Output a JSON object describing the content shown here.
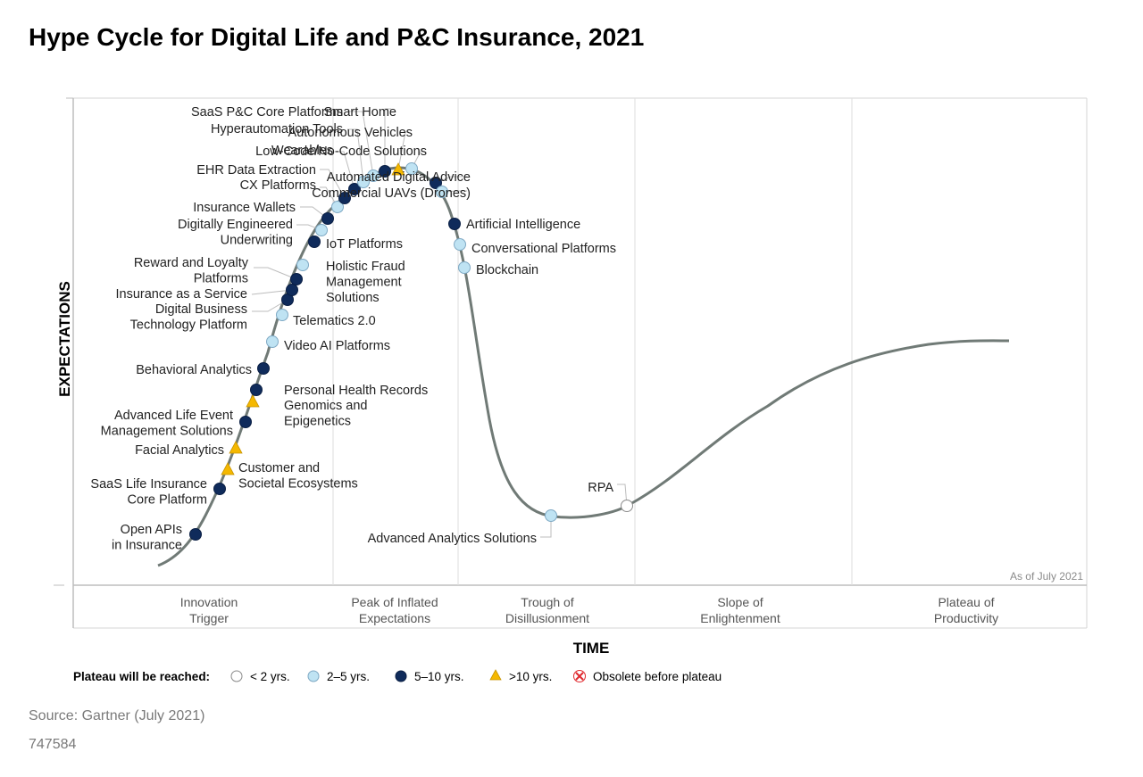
{
  "title": "Hype Cycle for Digital Life and P&C Insurance, 2021",
  "y_axis_label": "EXPECTATIONS",
  "x_axis_label": "TIME",
  "as_of": "As of July 2021",
  "phases": [
    [
      "Innovation",
      "Trigger"
    ],
    [
      "Peak of Inflated",
      "Expectations"
    ],
    [
      "Trough of",
      "Disillusionment"
    ],
    [
      "Slope of",
      "Enlightenment"
    ],
    [
      "Plateau of",
      "Productivity"
    ]
  ],
  "legend": {
    "title": "Plateau will be reached:",
    "items": [
      {
        "key": "lt2",
        "label": "< 2 yrs."
      },
      {
        "key": "2to5",
        "label": "2–5 yrs."
      },
      {
        "key": "5to10",
        "label": "5–10 yrs."
      },
      {
        "key": "gt10",
        "label": ">10 yrs."
      },
      {
        "key": "obsolete",
        "label": "Obsolete before plateau"
      }
    ]
  },
  "colors": {
    "lt2": "#ffffff",
    "2to5": "#bfe3f3",
    "5to10": "#0f2b5b",
    "gt10": "#f5b800",
    "obsolete": "#e0292e",
    "curve": "#707a76"
  },
  "source": "Source: Gartner (July 2021)",
  "doc_id": "747584",
  "technologies": [
    {
      "name": [
        "Open APIs",
        "in Insurance"
      ],
      "category": "5to10"
    },
    {
      "name": [
        "SaaS Life Insurance",
        "Core Platform"
      ],
      "category": "5to10"
    },
    {
      "name": [
        "Customer and",
        "Societal Ecosystems"
      ],
      "category": "gt10"
    },
    {
      "name": [
        "Facial Analytics"
      ],
      "category": "gt10"
    },
    {
      "name": [
        "Advanced Life Event",
        "Management Solutions"
      ],
      "category": "5to10"
    },
    {
      "name": [
        "Genomics and",
        "Epigenetics"
      ],
      "category": "gt10"
    },
    {
      "name": [
        "Personal Health Records"
      ],
      "category": "5to10"
    },
    {
      "name": [
        "Behavioral Analytics"
      ],
      "category": "5to10"
    },
    {
      "name": [
        "Video AI Platforms"
      ],
      "category": "2to5"
    },
    {
      "name": [
        "Telematics 2.0"
      ],
      "category": "2to5"
    },
    {
      "name": [
        "Digital Business",
        "Technology Platform"
      ],
      "category": "5to10"
    },
    {
      "name": [
        "Insurance as a Service"
      ],
      "category": "5to10"
    },
    {
      "name": [
        "Reward and Loyalty",
        "Platforms"
      ],
      "category": "5to10"
    },
    {
      "name": [
        "Holistic Fraud",
        "Management",
        "Solutions"
      ],
      "category": "2to5"
    },
    {
      "name": [
        "IoT Platforms"
      ],
      "category": "5to10"
    },
    {
      "name": [
        "Digitally Engineered",
        "Underwriting"
      ],
      "category": "2to5"
    },
    {
      "name": [
        "Insurance Wallets"
      ],
      "category": "5to10"
    },
    {
      "name": [
        "CX Platforms"
      ],
      "category": "2to5"
    },
    {
      "name": [
        "EHR Data Extraction"
      ],
      "category": "5to10"
    },
    {
      "name": [
        "Wearables"
      ],
      "category": "5to10"
    },
    {
      "name": [
        "Hyperautomation Tools"
      ],
      "category": "2to5"
    },
    {
      "name": [
        "SaaS P&C Core Platforms"
      ],
      "category": "2to5"
    },
    {
      "name": [
        "Smart Home"
      ],
      "category": "5to10"
    },
    {
      "name": [
        "Autonomous Vehicles"
      ],
      "category": "gt10"
    },
    {
      "name": [
        "Low-Code/No-Code Solutions"
      ],
      "category": "2to5"
    },
    {
      "name": [
        "Automated Digital Advice"
      ],
      "category": "5to10"
    },
    {
      "name": [
        "Commercial UAVs (Drones)"
      ],
      "category": "2to5"
    },
    {
      "name": [
        "Artificial Intelligence"
      ],
      "category": "5to10"
    },
    {
      "name": [
        "Conversational Platforms"
      ],
      "category": "2to5"
    },
    {
      "name": [
        "Blockchain"
      ],
      "category": "2to5"
    },
    {
      "name": [
        "Advanced Analytics Solutions"
      ],
      "category": "2to5"
    },
    {
      "name": [
        "RPA"
      ],
      "category": "lt2"
    }
  ]
}
